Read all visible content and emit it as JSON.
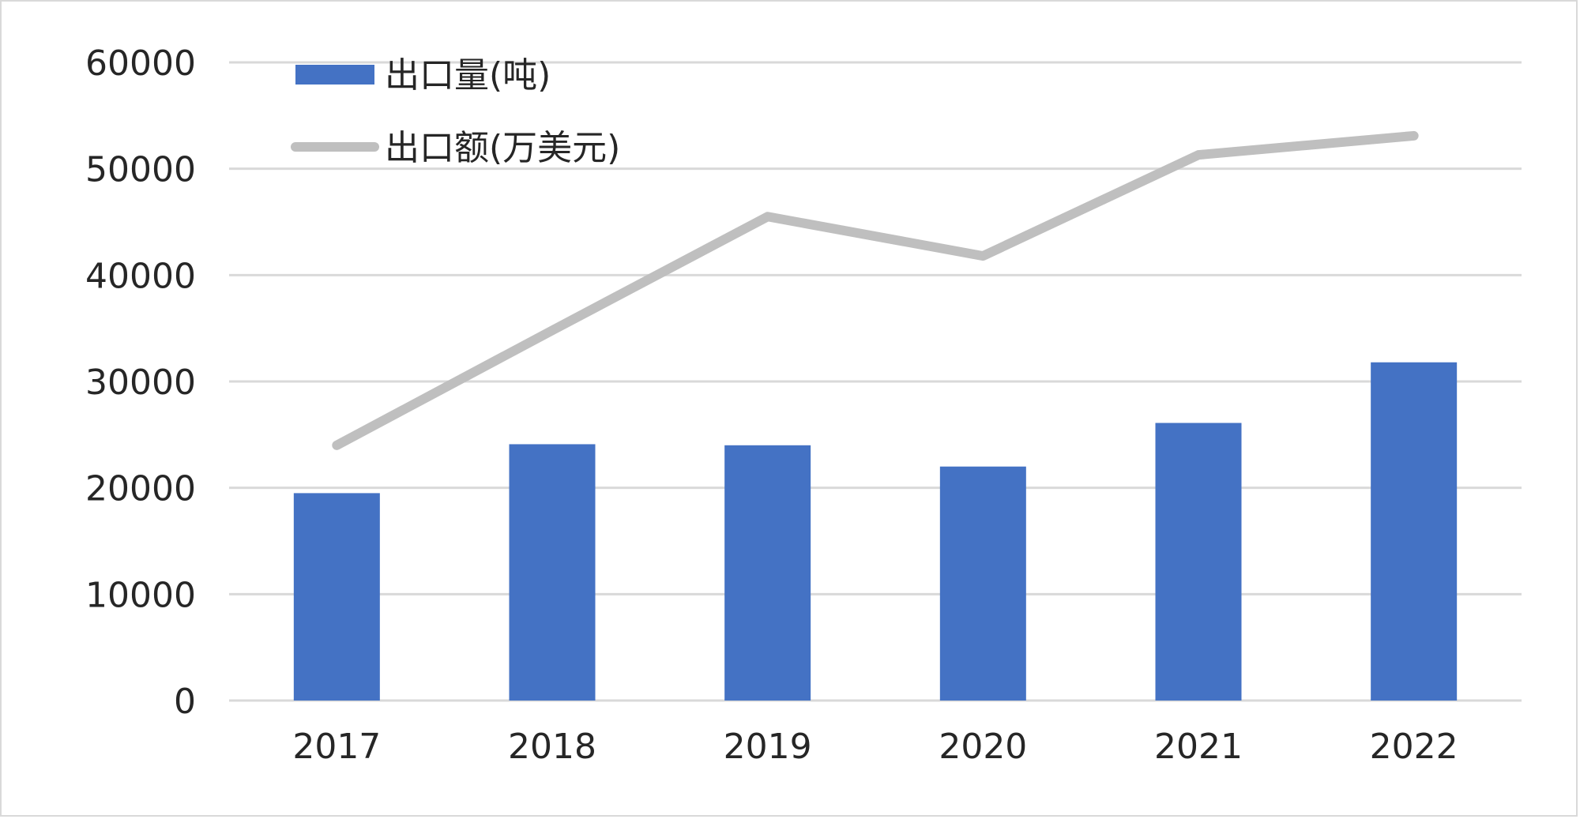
{
  "chart_data": {
    "type": "bar",
    "categories": [
      "2017",
      "2018",
      "2019",
      "2020",
      "2021",
      "2022"
    ],
    "series": [
      {
        "name": "出口量(吨)",
        "type": "bar",
        "values": [
          19500,
          24100,
          24000,
          22000,
          26100,
          31800
        ],
        "color": "#4472c4"
      },
      {
        "name": "出口额(万美元)",
        "type": "line",
        "values": [
          24000,
          34800,
          45500,
          41800,
          51300,
          53100
        ],
        "color": "#bfbfbf"
      }
    ],
    "title": "",
    "xlabel": "",
    "ylabel": "",
    "ylim": [
      0,
      60000
    ],
    "yticks": [
      "0",
      "10000",
      "20000",
      "30000",
      "40000",
      "50000",
      "60000"
    ],
    "grid": true,
    "grid_color": "#d9d9d9",
    "legend_position": "top-left"
  }
}
